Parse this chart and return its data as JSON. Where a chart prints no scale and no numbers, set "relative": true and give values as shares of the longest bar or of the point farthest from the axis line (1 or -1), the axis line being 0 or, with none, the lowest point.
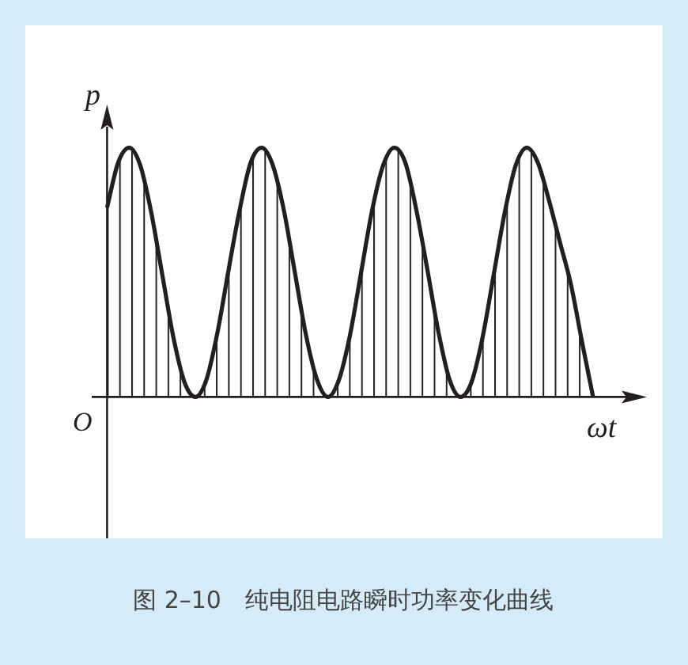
{
  "chart_data": {
    "type": "area",
    "relative": true,
    "title": "图 2–10　纯电阻电路瞬时功率变化曲线",
    "xlabel": "ωt",
    "ylabel": "p",
    "annotations": [
      "O"
    ],
    "color": "#231f20",
    "categories": [
      null,
      null,
      null,
      null,
      null,
      null,
      null,
      null,
      null,
      null,
      null,
      null,
      null,
      null,
      null,
      null,
      null,
      null,
      null,
      null,
      null,
      null,
      null,
      null,
      null,
      null,
      null,
      null,
      null,
      null,
      null,
      null,
      null,
      null,
      null,
      null,
      null,
      null,
      null,
      null,
      null,
      null,
      null,
      null,
      null
    ],
    "values": [
      0.76,
      0.94,
      1.0,
      0.93,
      0.74,
      0.49,
      0.24,
      0.06,
      0.0,
      0.07,
      0.26,
      0.51,
      0.75,
      0.94,
      1.0,
      0.93,
      0.75,
      0.5,
      0.25,
      0.07,
      0.0,
      0.07,
      0.25,
      0.5,
      0.75,
      0.93,
      1.0,
      0.94,
      0.75,
      0.51,
      0.26,
      0.07,
      0.0,
      0.06,
      0.24,
      0.49,
      0.74,
      0.93,
      1.0,
      0.94,
      0.79,
      0.62,
      0.45,
      0.22,
      0.0
    ]
  }
}
